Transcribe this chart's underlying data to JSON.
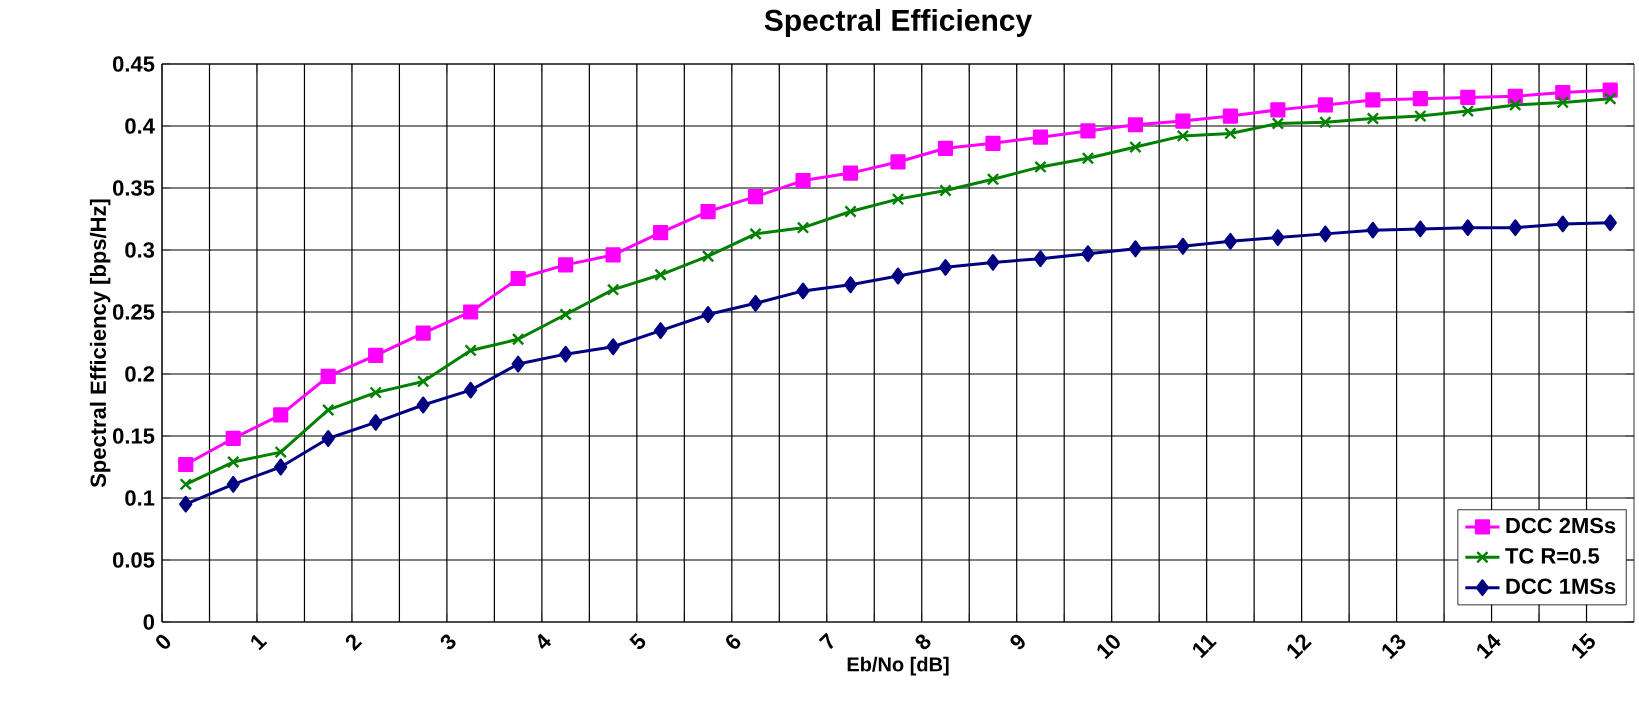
{
  "chart_data": {
    "type": "line",
    "title": "Spectral Efficiency",
    "xlabel": "Eb/No [dB]",
    "ylabel": "Spectral Efficiency [bps/Hz]",
    "x": [
      0.25,
      0.75,
      1.25,
      1.75,
      2.25,
      2.75,
      3.25,
      3.75,
      4.25,
      4.75,
      5.25,
      5.75,
      6.25,
      6.75,
      7.25,
      7.75,
      8.25,
      8.75,
      9.25,
      9.75,
      10.25,
      10.75,
      11.25,
      11.75,
      12.25,
      12.75,
      13.25,
      13.75,
      14.25,
      14.75,
      15.25
    ],
    "series": [
      {
        "name": "DCC 2MSs",
        "color": "#ff00ff",
        "marker": "square",
        "values": [
          0.127,
          0.148,
          0.167,
          0.198,
          0.215,
          0.233,
          0.25,
          0.277,
          0.288,
          0.296,
          0.314,
          0.331,
          0.343,
          0.356,
          0.362,
          0.371,
          0.382,
          0.386,
          0.391,
          0.396,
          0.401,
          0.404,
          0.408,
          0.413,
          0.417,
          0.421,
          0.422,
          0.423,
          0.424,
          0.427,
          0.429
        ]
      },
      {
        "name": "TC R=0.5",
        "color": "#008000",
        "marker": "cross",
        "values": [
          0.111,
          0.129,
          0.137,
          0.171,
          0.185,
          0.194,
          0.219,
          0.228,
          0.248,
          0.268,
          0.28,
          0.295,
          0.313,
          0.318,
          0.331,
          0.341,
          0.348,
          0.357,
          0.367,
          0.374,
          0.383,
          0.392,
          0.394,
          0.402,
          0.403,
          0.406,
          0.408,
          0.412,
          0.417,
          0.419,
          0.422
        ]
      },
      {
        "name": "DCC 1MSs",
        "color": "#000080",
        "marker": "diamond",
        "values": [
          0.095,
          0.111,
          0.125,
          0.148,
          0.161,
          0.175,
          0.187,
          0.208,
          0.216,
          0.222,
          0.235,
          0.248,
          0.257,
          0.267,
          0.272,
          0.279,
          0.286,
          0.29,
          0.293,
          0.297,
          0.301,
          0.303,
          0.307,
          0.31,
          0.313,
          0.316,
          0.317,
          0.318,
          0.318,
          0.321,
          0.322
        ]
      }
    ],
    "xlim": [
      0,
      15.5
    ],
    "ylim": [
      0,
      0.45
    ],
    "xticks": [
      0,
      {
        "value": 0.5,
        "label": null
      },
      1,
      {
        "value": 1.5,
        "label": null
      },
      2,
      {
        "value": 2.5,
        "label": null
      },
      3,
      {
        "value": 3.5,
        "label": null
      },
      4,
      {
        "value": 4.5,
        "label": null
      },
      5,
      {
        "value": 5.5,
        "label": null
      },
      6,
      {
        "value": 6.5,
        "label": null
      },
      7,
      {
        "value": 7.5,
        "label": null
      },
      8,
      {
        "value": 8.5,
        "label": null
      },
      9,
      {
        "value": 9.5,
        "label": null
      },
      10,
      {
        "value": 10.5,
        "label": null
      },
      11,
      {
        "value": 11.5,
        "label": null
      },
      12,
      {
        "value": 12.5,
        "label": null
      },
      13,
      {
        "value": 13.5,
        "label": null
      },
      14,
      {
        "value": 14.5,
        "label": null
      },
      15
    ],
    "yticks": [
      0,
      0.05,
      0.1,
      0.15,
      0.2,
      0.25,
      0.3,
      0.35,
      0.4,
      0.45
    ],
    "grid": true,
    "legend": "bottom right"
  }
}
